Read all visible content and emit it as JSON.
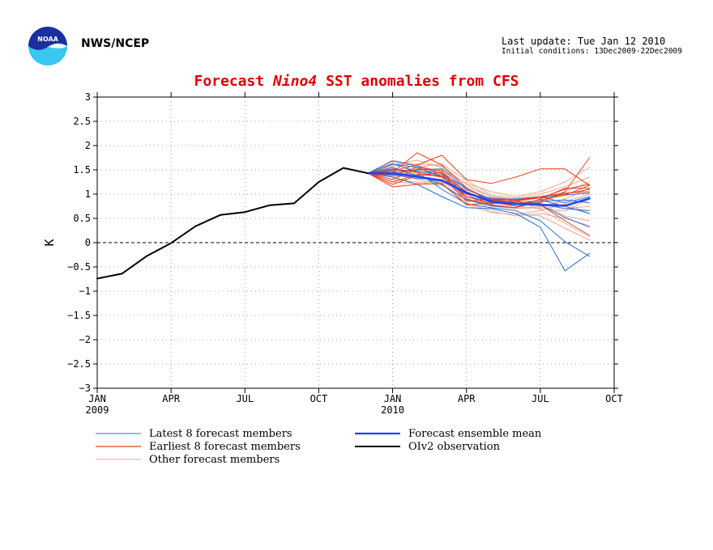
{
  "header": {
    "agency": "NWS/NCEP",
    "last_update": "Last update: Tue Jan 12 2010",
    "initial_conditions": "Initial conditions: 13Dec2009-22Dec2009",
    "logo_text": "NOAA"
  },
  "title": {
    "prefix": "Forecast",
    "region": "Nino4",
    "suffix": "SST anomalies from CFS"
  },
  "colors": {
    "latest": "#2a6fd6",
    "earliest": "#e8401a",
    "other": "#e8a994",
    "mean": "#2244ee",
    "observation": "#000000",
    "title": "#e00000"
  },
  "chart_data": {
    "type": "line",
    "ylabel": "K",
    "ylim": [
      -3,
      3
    ],
    "yticks": [
      -3,
      -2.5,
      -2,
      -1.5,
      -1,
      -0.5,
      0,
      0.5,
      1,
      1.5,
      2,
      2.5,
      3
    ],
    "xlim": [
      "Jan 2009",
      "Oct 2010"
    ],
    "xticks": [
      {
        "label": "JAN",
        "year": "2009",
        "date": "Jan 2009"
      },
      {
        "label": "APR",
        "year": "",
        "date": "Apr 2009"
      },
      {
        "label": "JUL",
        "year": "",
        "date": "Jul 2009"
      },
      {
        "label": "OCT",
        "year": "",
        "date": "Oct 2009"
      },
      {
        "label": "JAN",
        "year": "2010",
        "date": "Jan 2010"
      },
      {
        "label": "APR",
        "year": "",
        "date": "Apr 2010"
      },
      {
        "label": "JUL",
        "year": "",
        "date": "Jul 2010"
      },
      {
        "label": "OCT",
        "year": "",
        "date": "Oct 2010"
      }
    ],
    "grid": true,
    "zero_line": "dashed",
    "legend": [
      {
        "label": "Latest 8 forecast members",
        "series": "latest"
      },
      {
        "label": "Earliest 8 forecast members",
        "series": "earliest"
      },
      {
        "label": "Other forecast members",
        "series": "other"
      },
      {
        "label": "Forecast ensemble mean",
        "series": "mean"
      },
      {
        "label": "OIv2 observation",
        "series": "observation"
      }
    ],
    "observation": {
      "x": [
        "Jan 2009",
        "Feb 2009",
        "Mar 2009",
        "Apr 2009",
        "May 2009",
        "Jun 2009",
        "Jul 2009",
        "Aug 2009",
        "Sep 2009",
        "Oct 2009",
        "Nov 2009",
        "Dec 2009"
      ],
      "y": [
        -0.74,
        -0.64,
        -0.28,
        -0.01,
        0.34,
        0.57,
        0.63,
        0.77,
        0.81,
        1.25,
        1.54,
        1.43
      ]
    },
    "forecast_months": [
      "Dec 2009",
      "Jan 2010",
      "Feb 2010",
      "Mar 2010",
      "Apr 2010",
      "May 2010",
      "Jun 2010",
      "Jul 2010",
      "Aug 2010",
      "Sep 2010"
    ],
    "ensemble_mean": [
      1.43,
      1.43,
      1.36,
      1.28,
      1.03,
      0.85,
      0.8,
      0.78,
      0.76,
      0.91
    ],
    "members": {
      "latest": [
        [
          1.43,
          1.63,
          1.45,
          1.1,
          0.8,
          0.72,
          0.66,
          0.45,
          0.02,
          -0.28
        ],
        [
          1.43,
          1.35,
          1.2,
          0.95,
          0.72,
          0.7,
          0.6,
          0.32,
          -0.58,
          -0.22
        ],
        [
          1.43,
          1.62,
          1.55,
          1.35,
          0.95,
          0.85,
          0.8,
          0.78,
          0.52,
          0.32
        ],
        [
          1.43,
          1.5,
          1.48,
          1.38,
          1.05,
          0.82,
          0.78,
          0.88,
          0.75,
          0.6
        ],
        [
          1.43,
          1.68,
          1.58,
          1.42,
          1.12,
          0.88,
          0.9,
          0.95,
          0.82,
          0.95
        ],
        [
          1.43,
          1.55,
          1.38,
          1.2,
          0.88,
          0.76,
          0.72,
          0.85,
          0.88,
          0.82
        ],
        [
          1.43,
          1.45,
          1.5,
          1.52,
          1.1,
          0.9,
          0.85,
          0.8,
          0.7,
          0.66
        ],
        [
          1.43,
          1.4,
          1.32,
          1.3,
          1.0,
          0.92,
          0.88,
          0.92,
          0.98,
          1.02
        ]
      ],
      "earliest": [
        [
          1.43,
          1.48,
          1.6,
          1.8,
          1.3,
          1.22,
          1.35,
          1.52,
          1.52,
          1.18
        ],
        [
          1.43,
          1.2,
          1.38,
          1.45,
          0.95,
          0.8,
          0.85,
          0.95,
          1.0,
          1.1
        ],
        [
          1.43,
          1.45,
          1.85,
          1.6,
          1.12,
          0.85,
          0.75,
          0.82,
          1.05,
          1.75
        ],
        [
          1.43,
          1.3,
          1.52,
          1.42,
          0.9,
          0.78,
          0.72,
          0.9,
          1.12,
          1.12
        ],
        [
          1.43,
          1.25,
          1.4,
          1.38,
          0.85,
          0.9,
          0.88,
          0.95,
          1.02,
          1.05
        ],
        [
          1.43,
          1.15,
          1.2,
          1.22,
          0.78,
          0.82,
          0.8,
          0.88,
          0.98,
          1.18
        ],
        [
          1.43,
          1.52,
          1.45,
          1.35,
          1.0,
          0.88,
          0.82,
          0.78,
          0.45,
          0.15
        ],
        [
          1.43,
          1.38,
          1.55,
          1.48,
          1.02,
          0.88,
          0.86,
          0.92,
          1.1,
          1.2
        ]
      ],
      "other": [
        [
          1.43,
          1.6,
          1.7,
          1.55,
          1.15,
          0.95,
          0.9,
          0.82,
          0.55,
          0.45
        ],
        [
          1.43,
          1.5,
          1.3,
          1.2,
          0.82,
          0.65,
          0.55,
          0.6,
          0.5,
          0.35
        ],
        [
          1.43,
          1.35,
          1.45,
          1.5,
          1.22,
          1.05,
          0.95,
          1.05,
          1.25,
          1.55
        ],
        [
          1.43,
          1.7,
          1.6,
          1.45,
          1.05,
          0.82,
          0.75,
          0.7,
          0.65,
          0.9
        ],
        [
          1.43,
          1.42,
          1.55,
          1.62,
          1.28,
          0.98,
          0.92,
          1.0,
          1.15,
          1.35
        ],
        [
          1.43,
          1.55,
          1.35,
          1.25,
          0.92,
          0.7,
          0.6,
          0.55,
          0.3,
          0.05
        ],
        [
          1.43,
          1.3,
          1.25,
          1.18,
          0.88,
          0.78,
          0.7,
          0.75,
          0.85,
          1.0
        ],
        [
          1.43,
          1.62,
          1.48,
          1.4,
          1.08,
          0.9,
          0.84,
          0.8,
          0.7,
          0.75
        ],
        [
          1.43,
          1.38,
          1.42,
          1.35,
          1.0,
          0.75,
          0.7,
          0.72,
          0.9,
          1.12
        ],
        [
          1.43,
          1.58,
          1.62,
          1.58,
          1.2,
          0.95,
          0.88,
          0.68,
          0.4,
          0.12
        ],
        [
          1.43,
          1.25,
          1.22,
          1.3,
          0.95,
          0.82,
          0.78,
          0.85,
          1.05,
          1.25
        ],
        [
          1.43,
          1.48,
          1.38,
          1.22,
          0.78,
          0.62,
          0.58,
          0.66,
          0.8,
          0.6
        ]
      ]
    }
  }
}
